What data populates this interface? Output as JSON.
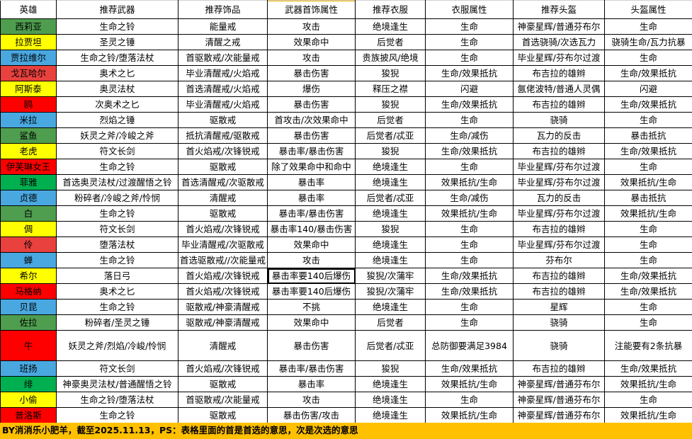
{
  "headers": [
    "英雄",
    "推荐武器",
    "推荐饰品",
    "武器首饰属性",
    "推荐衣服",
    "衣服属性",
    "推荐头盔",
    "头盔属性"
  ],
  "colors": {
    "green": "#4f9e4f",
    "bright_green": "#00b050",
    "yellow": "#ffff00",
    "blue": "#4aa8e0",
    "red": "#ff0000",
    "light_red": "#e8413e",
    "footer": "#ffc000"
  },
  "rows": [
    {
      "hero": "西莉亚",
      "color": "green",
      "cells": [
        "生命之铃",
        "能量戒",
        "攻击",
        "绝境逢生",
        "生命",
        "神豪星辉/普通芬布尔",
        "生命"
      ]
    },
    {
      "hero": "拉贾坦",
      "color": "yellow",
      "cells": [
        "圣灵之锤",
        "清醒之戒",
        "效果命中",
        "后觉者",
        "生命",
        "首选骁骑/次选瓦力",
        "骁骑生命/瓦力抗暴"
      ]
    },
    {
      "hero": "贾拉维尔",
      "color": "blue",
      "cells": [
        "生命之铃/堕落法杖",
        "首驱散戒/次能量戒",
        "攻击",
        "贵族披风/绝境",
        "生命",
        "毕业星辉/芬布尔过渡",
        "生命"
      ]
    },
    {
      "hero": "戈瓦哈尔",
      "color": "light_red",
      "cells": [
        "奥术之匕",
        "毕业清醒戒/火焰戒",
        "暴击伤害",
        "狻猊",
        "生命/效果抵抗",
        "布吉拉的雄辫",
        "生命/效果抵抗"
      ]
    },
    {
      "hero": "阿斯泰",
      "color": "yellow",
      "cells": [
        "奥灵法杖",
        "首选清醒戒/火焰戒",
        "爆伤",
        "释压之襟",
        "闪避",
        "氤佬波特/普通人灵偶",
        "闪避"
      ]
    },
    {
      "hero": "鸥",
      "color": "red",
      "cells": [
        "次奥术之匕",
        "毕业清醒戒/火焰戒",
        "暴击伤害",
        "狻猊",
        "生命/效果抵抗",
        "布吉拉的雄辫",
        "生命/效果抵抗"
      ]
    },
    {
      "hero": "米拉",
      "color": "blue",
      "cells": [
        "烈焰之锤",
        "驱散戒",
        "首攻击/次效果命中",
        "后觉者",
        "生命",
        "骁骑",
        "生命"
      ]
    },
    {
      "hero": "鲨鱼",
      "color": "green",
      "cells": [
        "妖灵之斧/冷峻之斧",
        "抵抗清醒戒/驱散戒",
        "暴击伤害",
        "后觉者/忒亚",
        "生命/减伤",
        "瓦力的反击",
        "暴击抵抗"
      ]
    },
    {
      "hero": "老虎",
      "color": "yellow",
      "cells": [
        "符文长剑",
        "首火焰戒/次锋锐戒",
        "暴击率/暴击伤害",
        "狻猊",
        "生命/效果抵抗",
        "布吉拉的雄辫",
        "生命/效果抵抗"
      ]
    },
    {
      "hero": "伊芙琳女王",
      "color": "red",
      "cells": [
        "生命之铃",
        "驱散戒",
        "除了效果命中和命中",
        "绝境逢生",
        "生命",
        "毕业星辉/芬布尔过渡",
        "生命"
      ]
    },
    {
      "hero": "菲雅",
      "color": "bright_green",
      "cells": [
        "首选奥灵法杖/过渡醒悟之铃",
        "首选清醒戒/次驱散戒",
        "暴击率",
        "绝境逢生",
        "效果抵抗/生命",
        "毕业星辉/芬布尔过渡",
        "效果抵抗/生命"
      ]
    },
    {
      "hero": "贞德",
      "color": "blue",
      "cells": [
        "粉碎者/冷峻之斧/怜悯",
        "清醒戒",
        "暴击率",
        "后觉者/忒亚",
        "生命/减伤",
        "瓦力的反击",
        "暴击抵抗"
      ]
    },
    {
      "hero": "白",
      "color": "green",
      "cells": [
        "生命之铃",
        "驱散戒",
        "暴击率/暴击伤害",
        "绝境逢生",
        "效果抵抗/生命",
        "毕业星辉/芬布尔过渡",
        "效果抵抗/生命"
      ]
    },
    {
      "hero": "倜",
      "color": "yellow",
      "cells": [
        "符文长剑",
        "首火焰戒/次锋锐戒",
        "暴击率140/暴击伤害",
        "狻猊",
        "生命",
        "布吉拉的雄辫",
        "生命"
      ]
    },
    {
      "hero": "伶",
      "color": "light_red",
      "cells": [
        "堕落法杖",
        "毕业清醒戒/次驱散戒",
        "效果命中",
        "绝境逢生",
        "生命",
        "毕业星辉/芬布尔过渡",
        "生命"
      ]
    },
    {
      "hero": "蝉",
      "color": "blue",
      "cells": [
        "生命之铃",
        "首选驱散戒//次能量戒",
        "攻击",
        "绝境逢生",
        "生命",
        "芬布尔",
        "生命"
      ]
    },
    {
      "hero": "希尔",
      "color": "yellow",
      "cells": [
        "落日弓",
        "首火焰戒/次锋锐戒",
        "暴击率要140后爆伤",
        "狻猊/次蒲牢",
        "生命/效果抵抗",
        "布吉拉的雄辫",
        "生命/效果抵抗"
      ]
    },
    {
      "hero": "马格纳",
      "color": "red",
      "cells": [
        "奥术之匕",
        "首火焰戒/次锋锐戒",
        "暴击率要140后爆伤",
        "狻猊/次蒲牢",
        "生命/效果抵抗",
        "布吉拉的雄辫",
        "生命/效果抵抗"
      ]
    },
    {
      "hero": "贝昆",
      "color": "blue",
      "cells": [
        "生命之铃",
        "驱散戒/神豪清醒戒",
        "不挑",
        "绝境逢生",
        "生命",
        "星辉",
        "生命"
      ]
    },
    {
      "hero": "佐拉",
      "color": "green",
      "cells": [
        "粉碎者/圣灵之锤",
        "驱散戒/神豪清醒戒",
        "效果命中",
        "后觉者",
        "生命",
        "骁骑",
        "生命"
      ]
    },
    {
      "hero": "牛",
      "color": "red",
      "cells": [
        "妖灵之斧/烈焰/冷峻/怜悯",
        "清醒戒",
        "暴击伤害",
        "后觉者/忒亚",
        "总防御要满足3984",
        "骁骑",
        "注能要有2条抗暴"
      ]
    },
    {
      "hero": "班扬",
      "color": "blue",
      "cells": [
        "符文长剑",
        "首火焰戒/次锋锐戒",
        "暴击率/暴击伤害",
        "狻猊",
        "生命/效果抵抗",
        "布吉拉的雄辫",
        "生命/效果抵抗"
      ]
    },
    {
      "hero": "绯",
      "color": "bright_green",
      "cells": [
        "神豪奥灵法杖/普通醒悟之铃",
        "驱散戒",
        "暴击率",
        "绝境逢生",
        "效果抵抗/生命",
        "神豪星辉/普通芬布尔",
        "效果抵抗/生命"
      ]
    },
    {
      "hero": "小偷",
      "color": "yellow",
      "cells": [
        "生命之铃/堕落法杖",
        "首驱散戒/次能量戒",
        "攻击",
        "绝境逢生",
        "生命",
        "神豪星辉/普通芬布尔",
        "生命"
      ]
    },
    {
      "hero": "普洛斯",
      "color": "red",
      "cells": [
        "生命之铃",
        "驱散戒",
        "暴击伤害/攻击",
        "绝境逢生",
        "效果抵抗/生命",
        "神豪星辉/普通芬布尔",
        "效果抵抗/生命"
      ]
    }
  ],
  "footer": "BY消消乐小肥羊，截至2025.11.13，PS：表格里面的首是首选的意思，次是次选的意思"
}
